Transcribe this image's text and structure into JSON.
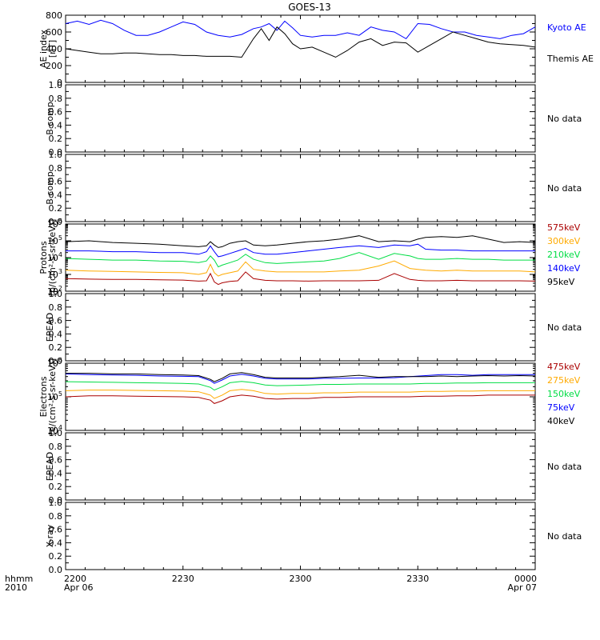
{
  "title": "GOES-13",
  "colors": {
    "black": "#000000",
    "blue": "#0000ff",
    "green": "#00dd44",
    "orange": "#ffaa00",
    "darkred": "#aa0000"
  },
  "xaxis": {
    "row_label_top": "hhmm",
    "row_label_bottom": "2010",
    "ticks": [
      {
        "t": 0,
        "label": "2200",
        "sub": "Apr 06"
      },
      {
        "t": 30,
        "label": "2230",
        "sub": ""
      },
      {
        "t": 60,
        "label": "2300",
        "sub": ""
      },
      {
        "t": 90,
        "label": "2330",
        "sub": ""
      },
      {
        "t": 120,
        "label": "0000",
        "sub": "Apr 07"
      }
    ],
    "range_minutes": [
      0,
      120
    ]
  },
  "no_data_label": "No data",
  "chart_data": [
    {
      "id": "ae",
      "type": "line",
      "scale": "linear",
      "ylabel": [
        "AE index",
        "[nT]"
      ],
      "ylim": [
        0,
        800
      ],
      "yticks": [
        0,
        200,
        400,
        600,
        800
      ],
      "yticklabels": [
        "0",
        "200",
        "400",
        "600",
        "800"
      ],
      "x_minutes": [
        0,
        3,
        6,
        9,
        12,
        15,
        18,
        21,
        24,
        27,
        30,
        33,
        36,
        39,
        42,
        45,
        48,
        50,
        52,
        54,
        56,
        58,
        60,
        63,
        66,
        69,
        72,
        75,
        78,
        81,
        84,
        87,
        90,
        93,
        96,
        99,
        102,
        105,
        108,
        111,
        114,
        117,
        120
      ],
      "series": [
        {
          "name": "Kyoto AE",
          "color": "blue",
          "values": [
            700,
            730,
            690,
            740,
            700,
            620,
            560,
            560,
            600,
            660,
            720,
            690,
            600,
            560,
            540,
            570,
            640,
            660,
            700,
            620,
            730,
            650,
            560,
            540,
            560,
            560,
            590,
            560,
            660,
            620,
            600,
            520,
            700,
            690,
            640,
            600,
            600,
            560,
            540,
            520,
            560,
            580,
            660
          ]
        },
        {
          "name": "Themis AE",
          "color": "black",
          "values": [
            400,
            380,
            360,
            340,
            340,
            350,
            350,
            340,
            330,
            330,
            320,
            320,
            310,
            310,
            310,
            300,
            520,
            640,
            500,
            660,
            580,
            460,
            400,
            420,
            360,
            300,
            380,
            480,
            520,
            440,
            480,
            470,
            360,
            440,
            520,
            600,
            560,
            520,
            480,
            460,
            450,
            440,
            420
          ]
        }
      ],
      "legend": [
        "Kyoto AE",
        "Themis AE"
      ]
    },
    {
      "id": "bcomp1",
      "type": "line",
      "scale": "linear",
      "ylabel": [
        "B comp"
      ],
      "ylim": [
        0,
        1
      ],
      "yticks": [
        0,
        0.2,
        0.4,
        0.6,
        0.8,
        1.0
      ],
      "yticklabels": [
        "0.0",
        "0.2",
        "0.4",
        "0.6",
        "0.8",
        "1.0"
      ],
      "series": [],
      "no_data": true
    },
    {
      "id": "bcomp2",
      "type": "line",
      "scale": "linear",
      "ylabel": [
        "B comp"
      ],
      "ylim": [
        0,
        1
      ],
      "yticks": [
        0,
        0.2,
        0.4,
        0.6,
        0.8,
        1.0
      ],
      "yticklabels": [
        "0.0",
        "0.2",
        "0.4",
        "0.6",
        "0.8",
        "1.0"
      ],
      "series": [],
      "no_data": true
    },
    {
      "id": "protons",
      "type": "line",
      "scale": "log",
      "ylabel": [
        "Protons",
        "[p/(cm²-s-sr-keV)]"
      ],
      "ylim_exp": [
        2,
        6
      ],
      "yticks_exp": [
        2,
        3,
        4,
        5,
        6
      ],
      "x_minutes": [
        0,
        6,
        12,
        18,
        24,
        30,
        34,
        36,
        37,
        38,
        39,
        40,
        42,
        44,
        46,
        48,
        51,
        54,
        58,
        62,
        66,
        70,
        75,
        80,
        84,
        88,
        90,
        92,
        96,
        100,
        104,
        108,
        112,
        116,
        120
      ],
      "series": [
        {
          "name": "575keV",
          "color": "darkred",
          "log10_values": [
            2.75,
            2.72,
            2.7,
            2.7,
            2.68,
            2.66,
            2.6,
            2.62,
            3.05,
            2.55,
            2.4,
            2.5,
            2.58,
            2.62,
            3.15,
            2.75,
            2.65,
            2.62,
            2.62,
            2.6,
            2.62,
            2.62,
            2.62,
            2.65,
            3.05,
            2.7,
            2.65,
            2.62,
            2.62,
            2.65,
            2.62,
            2.62,
            2.62,
            2.62,
            2.6
          ]
        },
        {
          "name": "300keV",
          "color": "orange",
          "log10_values": [
            3.25,
            3.2,
            3.18,
            3.15,
            3.12,
            3.1,
            3.0,
            3.1,
            3.6,
            3.1,
            2.9,
            3.0,
            3.1,
            3.2,
            3.75,
            3.3,
            3.2,
            3.15,
            3.15,
            3.15,
            3.15,
            3.2,
            3.25,
            3.5,
            3.8,
            3.35,
            3.3,
            3.25,
            3.2,
            3.25,
            3.2,
            3.2,
            3.2,
            3.2,
            3.15
          ]
        },
        {
          "name": "210keV",
          "color": "green",
          "log10_values": [
            3.95,
            3.9,
            3.85,
            3.85,
            3.8,
            3.78,
            3.7,
            3.8,
            4.1,
            3.85,
            3.45,
            3.55,
            3.7,
            3.85,
            4.2,
            3.9,
            3.7,
            3.65,
            3.7,
            3.75,
            3.8,
            3.95,
            4.3,
            3.9,
            4.25,
            4.1,
            3.95,
            3.9,
            3.9,
            3.95,
            3.9,
            3.9,
            3.85,
            3.85,
            3.85
          ]
        },
        {
          "name": "140keV",
          "color": "blue",
          "log10_values": [
            4.4,
            4.4,
            4.35,
            4.35,
            4.3,
            4.3,
            4.2,
            4.35,
            4.7,
            4.35,
            4.05,
            4.1,
            4.25,
            4.4,
            4.55,
            4.3,
            4.2,
            4.2,
            4.3,
            4.4,
            4.5,
            4.6,
            4.7,
            4.6,
            4.75,
            4.7,
            4.8,
            4.5,
            4.45,
            4.45,
            4.4,
            4.4,
            4.4,
            4.4,
            4.4
          ]
        },
        {
          "name": "95keV",
          "color": "black",
          "log10_values": [
            4.95,
            5.0,
            4.9,
            4.85,
            4.8,
            4.7,
            4.65,
            4.7,
            4.95,
            4.75,
            4.6,
            4.65,
            4.85,
            4.95,
            5.0,
            4.75,
            4.7,
            4.75,
            4.85,
            4.95,
            5.0,
            5.1,
            5.3,
            4.95,
            5.0,
            4.95,
            5.1,
            5.2,
            5.25,
            5.2,
            5.3,
            5.1,
            4.9,
            4.95,
            4.9
          ]
        }
      ],
      "legend": [
        "575keV",
        "300keV",
        "210keV",
        "140keV",
        "95keV"
      ]
    },
    {
      "id": "epead1",
      "type": "line",
      "scale": "linear",
      "ylabel": [
        "EPEAD"
      ],
      "ylim": [
        0,
        1
      ],
      "yticks": [
        0,
        0.2,
        0.4,
        0.6,
        0.8,
        1.0
      ],
      "yticklabels": [
        "0.0",
        "0.2",
        "0.4",
        "0.6",
        "0.8",
        "1.0"
      ],
      "series": [],
      "no_data": true
    },
    {
      "id": "electrons",
      "type": "line",
      "scale": "log",
      "ylabel": [
        "Electrons",
        "[e/(cm²-s-sr-keV)]"
      ],
      "ylim_exp": [
        4,
        6
      ],
      "yticks_exp": [
        4,
        5,
        6
      ],
      "x_minutes": [
        0,
        6,
        12,
        18,
        24,
        30,
        34,
        37,
        38,
        40,
        42,
        45,
        48,
        51,
        54,
        58,
        62,
        66,
        70,
        75,
        80,
        84,
        88,
        92,
        96,
        100,
        104,
        108,
        112,
        116,
        120
      ],
      "series": [
        {
          "name": "475keV",
          "color": "darkred",
          "log10_values": [
            5.0,
            5.03,
            5.03,
            5.02,
            5.01,
            5.0,
            4.98,
            4.9,
            4.8,
            4.88,
            5.0,
            5.05,
            5.02,
            4.95,
            4.93,
            4.95,
            4.95,
            4.98,
            4.98,
            5.0,
            5.0,
            5.0,
            5.0,
            5.02,
            5.02,
            5.03,
            5.03,
            5.05,
            5.05,
            5.05,
            5.05
          ]
        },
        {
          "name": "275keV",
          "color": "orange",
          "log10_values": [
            5.18,
            5.2,
            5.2,
            5.19,
            5.18,
            5.17,
            5.15,
            5.05,
            4.95,
            5.05,
            5.18,
            5.22,
            5.18,
            5.1,
            5.08,
            5.1,
            5.1,
            5.12,
            5.12,
            5.14,
            5.14,
            5.14,
            5.14,
            5.16,
            5.16,
            5.17,
            5.17,
            5.18,
            5.18,
            5.18,
            5.18
          ]
        },
        {
          "name": "150keV",
          "color": "green",
          "log10_values": [
            5.45,
            5.44,
            5.43,
            5.42,
            5.41,
            5.4,
            5.38,
            5.28,
            5.2,
            5.3,
            5.42,
            5.46,
            5.42,
            5.35,
            5.33,
            5.34,
            5.35,
            5.37,
            5.37,
            5.38,
            5.38,
            5.38,
            5.38,
            5.4,
            5.4,
            5.41,
            5.41,
            5.42,
            5.42,
            5.42,
            5.42
          ]
        },
        {
          "name": "75keV",
          "color": "blue",
          "log10_values": [
            5.68,
            5.66,
            5.65,
            5.64,
            5.62,
            5.61,
            5.6,
            5.48,
            5.4,
            5.5,
            5.62,
            5.67,
            5.62,
            5.55,
            5.53,
            5.53,
            5.53,
            5.55,
            5.55,
            5.56,
            5.56,
            5.57,
            5.6,
            5.63,
            5.66,
            5.66,
            5.64,
            5.66,
            5.66,
            5.66,
            5.66
          ]
        },
        {
          "name": "40keV",
          "color": "black",
          "log10_values": [
            5.7,
            5.7,
            5.68,
            5.68,
            5.66,
            5.65,
            5.63,
            5.52,
            5.45,
            5.55,
            5.68,
            5.72,
            5.66,
            5.58,
            5.56,
            5.56,
            5.56,
            5.58,
            5.6,
            5.64,
            5.58,
            5.6,
            5.6,
            5.6,
            5.62,
            5.6,
            5.62,
            5.63,
            5.62,
            5.63,
            5.62
          ]
        }
      ],
      "legend": [
        "475keV",
        "275keV",
        "150keV",
        "75keV",
        "40keV"
      ]
    },
    {
      "id": "epead2",
      "type": "line",
      "scale": "linear",
      "ylabel": [
        "EPEAD"
      ],
      "ylim": [
        0,
        1
      ],
      "yticks": [
        0,
        0.2,
        0.4,
        0.6,
        0.8,
        1.0
      ],
      "yticklabels": [
        "0.0",
        "0.2",
        "0.4",
        "0.6",
        "0.8",
        "1.0"
      ],
      "series": [],
      "no_data": true
    },
    {
      "id": "xray",
      "type": "line",
      "scale": "linear",
      "ylabel": [
        "X-ray"
      ],
      "ylim": [
        0,
        1
      ],
      "yticks": [
        0,
        0.2,
        0.4,
        0.6,
        0.8,
        1.0
      ],
      "yticklabels": [
        "0.0",
        "0.2",
        "0.4",
        "0.6",
        "0.8",
        "1.0"
      ],
      "series": [],
      "no_data": true
    }
  ]
}
